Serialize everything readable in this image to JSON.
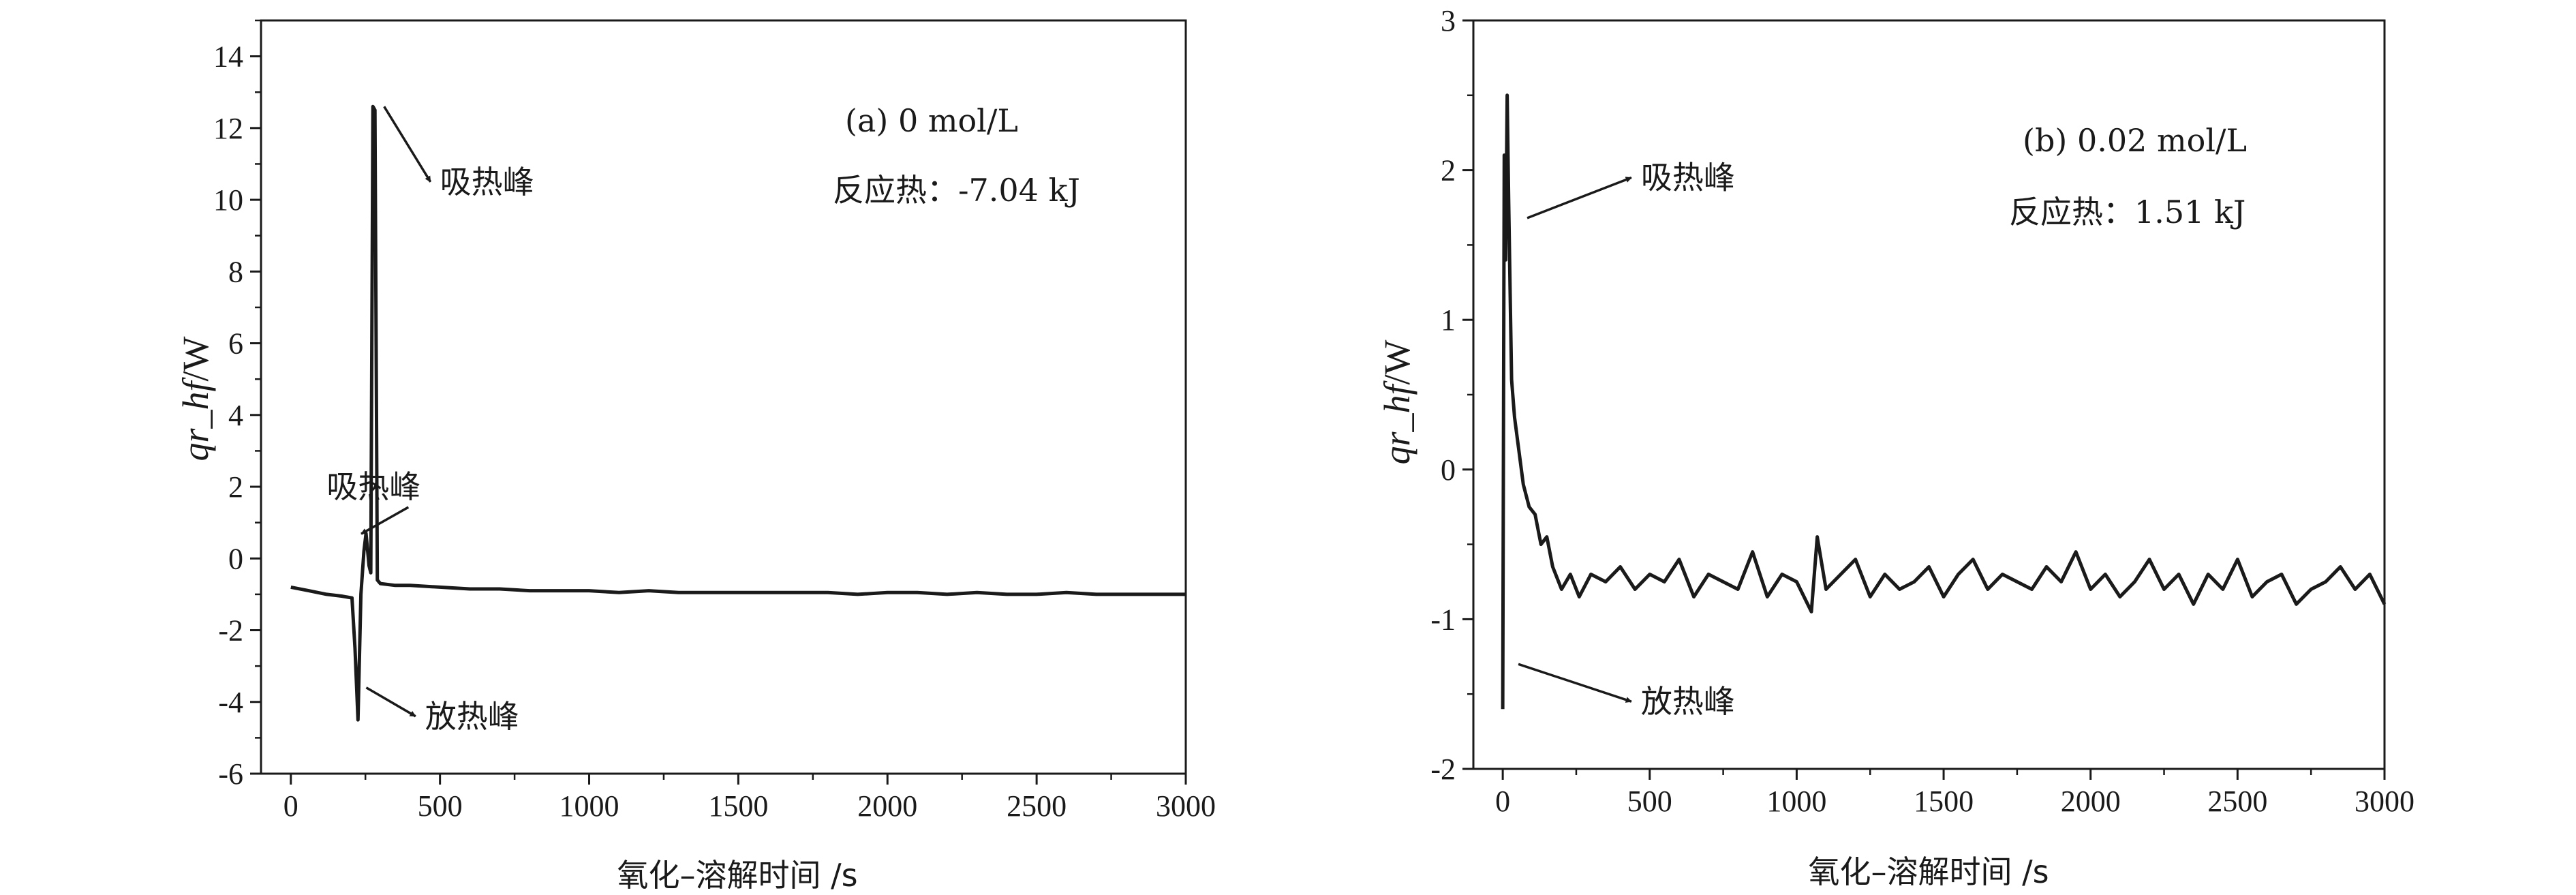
{
  "chart_data": [
    {
      "type": "line",
      "panel_label": "(a) 0 mol/L",
      "reaction_heat": "反应热：-7.04 kJ",
      "xlabel": "氧化–溶解时间  /s",
      "ylabel_italic": "qr_hf",
      "ylabel_unit": "/W",
      "xlim": [
        -100,
        3000
      ],
      "ylim": [
        -6,
        15
      ],
      "xticks": [
        0,
        500,
        1000,
        1500,
        2000,
        2500,
        3000
      ],
      "yticks": [
        -6,
        -4,
        -2,
        0,
        2,
        4,
        6,
        8,
        10,
        12,
        14
      ],
      "series": [
        {
          "x": [
            0,
            60,
            120,
            170,
            205,
            215,
            225,
            235,
            245,
            252,
            262,
            268,
            275,
            282,
            290,
            300,
            350,
            400,
            500,
            600,
            700,
            800,
            900,
            1000,
            1100,
            1200,
            1300,
            1400,
            1500,
            1600,
            1700,
            1800,
            1900,
            2000,
            2100,
            2200,
            2300,
            2400,
            2500,
            2600,
            2700,
            2800,
            2900,
            3000
          ],
          "y": [
            -0.8,
            -0.9,
            -1.0,
            -1.05,
            -1.1,
            -2.5,
            -4.5,
            -1.0,
            0.2,
            0.7,
            -0.2,
            -0.4,
            12.6,
            12.5,
            -0.6,
            -0.7,
            -0.75,
            -0.75,
            -0.8,
            -0.85,
            -0.85,
            -0.9,
            -0.9,
            -0.9,
            -0.95,
            -0.9,
            -0.95,
            -0.95,
            -0.95,
            -0.95,
            -0.95,
            -0.95,
            -1.0,
            -0.95,
            -0.95,
            -1.0,
            -0.95,
            -1.0,
            -1.0,
            -0.95,
            -1.0,
            -1.0,
            -1.0,
            -1.0
          ]
        }
      ],
      "annotations": [
        {
          "text": "吸热峰",
          "target": [
            290,
            12.6
          ],
          "label_at": [
            500,
            10.5
          ]
        },
        {
          "text": "吸热峰",
          "target": [
            245,
            0.8
          ],
          "label_at": [
            120,
            2.0
          ]
        },
        {
          "text": "放热峰",
          "target": [
            230,
            -3.6
          ],
          "label_at": [
            450,
            -4.4
          ]
        }
      ]
    },
    {
      "type": "line",
      "panel_label": "(b) 0.02 mol/L",
      "reaction_heat": "反应热：1.51 kJ",
      "xlabel": "氧化–溶解时间  /s",
      "ylabel_italic": "qr_hf",
      "ylabel_unit": "/W",
      "xlim": [
        -100,
        3000
      ],
      "ylim": [
        -2,
        3
      ],
      "xticks": [
        0,
        500,
        1000,
        1500,
        2000,
        2500,
        3000
      ],
      "yticks": [
        -2,
        -1,
        0,
        1,
        2,
        3
      ],
      "series": [
        {
          "x": [
            0,
            5,
            10,
            15,
            20,
            25,
            30,
            40,
            50,
            70,
            90,
            110,
            130,
            150,
            170,
            200,
            230,
            260,
            300,
            350,
            400,
            450,
            500,
            550,
            600,
            650,
            700,
            750,
            800,
            850,
            900,
            950,
            1000,
            1050,
            1070,
            1100,
            1150,
            1200,
            1250,
            1300,
            1350,
            1400,
            1450,
            1500,
            1550,
            1600,
            1650,
            1700,
            1750,
            1800,
            1850,
            1900,
            1950,
            2000,
            2050,
            2100,
            2150,
            2200,
            2250,
            2300,
            2350,
            2400,
            2450,
            2500,
            2550,
            2600,
            2650,
            2700,
            2750,
            2800,
            2850,
            2900,
            2950,
            3000
          ],
          "y": [
            -1.6,
            2.1,
            1.4,
            2.5,
            1.8,
            1.2,
            0.6,
            0.35,
            0.2,
            -0.1,
            -0.25,
            -0.3,
            -0.5,
            -0.45,
            -0.65,
            -0.8,
            -0.7,
            -0.85,
            -0.7,
            -0.75,
            -0.65,
            -0.8,
            -0.7,
            -0.75,
            -0.6,
            -0.85,
            -0.7,
            -0.75,
            -0.8,
            -0.55,
            -0.85,
            -0.7,
            -0.75,
            -0.95,
            -0.45,
            -0.8,
            -0.7,
            -0.6,
            -0.85,
            -0.7,
            -0.8,
            -0.75,
            -0.65,
            -0.85,
            -0.7,
            -0.6,
            -0.8,
            -0.7,
            -0.75,
            -0.8,
            -0.65,
            -0.75,
            -0.55,
            -0.8,
            -0.7,
            -0.85,
            -0.75,
            -0.6,
            -0.8,
            -0.7,
            -0.9,
            -0.7,
            -0.8,
            -0.6,
            -0.85,
            -0.75,
            -0.7,
            -0.9,
            -0.8,
            -0.75,
            -0.65,
            -0.8,
            -0.7,
            -0.9
          ]
        }
      ],
      "annotations": [
        {
          "text": "吸热峰",
          "target": [
            60,
            1.68
          ],
          "label_at": [
            470,
            1.95
          ]
        },
        {
          "text": "放热峰",
          "target": [
            30,
            -1.3
          ],
          "label_at": [
            470,
            -1.55
          ]
        }
      ]
    }
  ]
}
